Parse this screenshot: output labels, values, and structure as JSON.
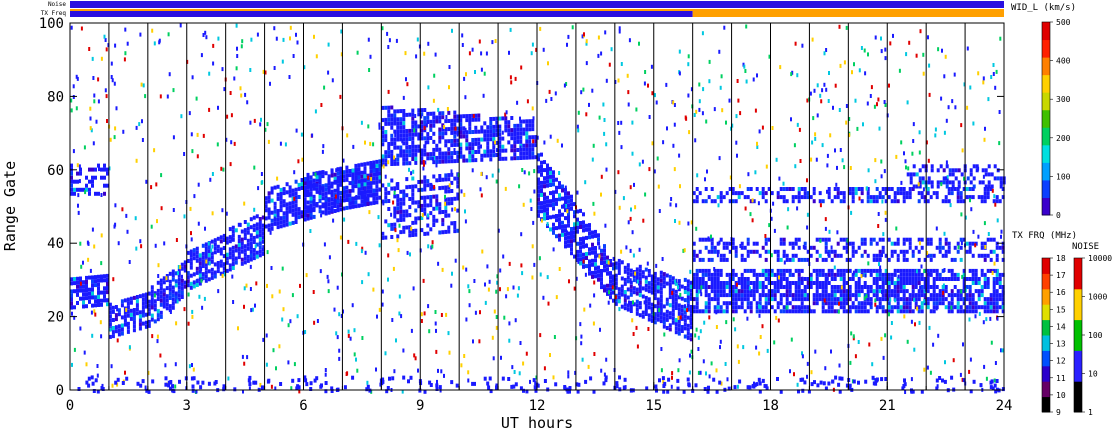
{
  "chart_data": {
    "type": "heatmap",
    "xlabel": "UT hours",
    "ylabel": "Range Gate",
    "xlim": [
      0,
      24
    ],
    "ylim": [
      0,
      100
    ],
    "x_ticks": [
      "0",
      "3",
      "6",
      "9",
      "12",
      "15",
      "18",
      "21",
      "24"
    ],
    "y_ticks": [
      "0",
      "20",
      "40",
      "60",
      "80",
      "100"
    ],
    "hour_lines": [
      1,
      2,
      3,
      4,
      5,
      6,
      7,
      8,
      9,
      10,
      11,
      12,
      13,
      14,
      15,
      16,
      17,
      18,
      19,
      20,
      21,
      22,
      23
    ],
    "noise_bar_label": "Noise",
    "txfreq_bar_label": "TX Freq",
    "background_color": "#ffffff",
    "scatter_color": "#1a1aff",
    "bands": [
      {
        "t0": 0.0,
        "t1": 1.0,
        "lo": [
          23,
          24
        ],
        "hi": [
          31,
          32
        ]
      },
      {
        "t0": 1.0,
        "t1": 2.0,
        "lo": [
          15,
          18
        ],
        "hi": [
          24,
          28
        ]
      },
      {
        "t0": 2.0,
        "t1": 3.0,
        "lo": [
          18,
          26
        ],
        "hi": [
          28,
          36
        ]
      },
      {
        "t0": 3.0,
        "t1": 5.0,
        "lo": [
          28,
          38
        ],
        "hi": [
          38,
          50
        ]
      },
      {
        "t0": 5.0,
        "t1": 7.0,
        "lo": [
          44,
          50
        ],
        "hi": [
          56,
          62
        ]
      },
      {
        "t0": 7.0,
        "t1": 8.0,
        "lo": [
          50,
          52
        ],
        "hi": [
          62,
          64
        ]
      },
      {
        "t0": 8.0,
        "t1": 12.0,
        "lo": [
          62,
          64
        ],
        "hi": [
          78,
          74
        ]
      },
      {
        "t0": 12.0,
        "t1": 14.0,
        "lo": [
          48,
          24
        ],
        "hi": [
          66,
          36
        ]
      },
      {
        "t0": 14.0,
        "t1": 16.0,
        "lo": [
          24,
          14
        ],
        "hi": [
          36,
          30
        ]
      },
      {
        "t0": 16.0,
        "t1": 24.0,
        "lo": [
          22,
          22
        ],
        "hi": [
          34,
          34
        ]
      }
    ],
    "extra_bands": [
      {
        "t0": 0.0,
        "t1": 1.0,
        "lo": [
          54,
          54
        ],
        "hi": [
          62,
          62
        ]
      },
      {
        "t0": 6.0,
        "t1": 8.0,
        "lo": [
          48,
          52
        ],
        "hi": [
          60,
          62
        ]
      },
      {
        "t0": 8.0,
        "t1": 10.0,
        "lo": [
          42,
          44
        ],
        "hi": [
          58,
          60
        ]
      },
      {
        "t0": 16.0,
        "t1": 24.0,
        "lo": [
          36,
          36
        ],
        "hi": [
          42,
          42
        ]
      },
      {
        "t0": 16.0,
        "t1": 24.0,
        "lo": [
          52,
          52
        ],
        "hi": [
          56,
          56
        ]
      },
      {
        "t0": 21.5,
        "t1": 24.0,
        "lo": [
          56,
          56
        ],
        "hi": [
          62,
          62
        ]
      }
    ],
    "top_bar_split_hour": 16.0,
    "colorbars": {
      "width": {
        "title": "WID_L (km/s)",
        "ticks": [
          "0",
          "100",
          "200",
          "300",
          "400",
          "500"
        ],
        "colors": [
          "#3a00cc",
          "#0a40ff",
          "#00a0ff",
          "#00e0e0",
          "#00d060",
          "#40c000",
          "#c8d800",
          "#ffd000",
          "#ff8000",
          "#ff2000",
          "#e00000"
        ]
      },
      "txfreq": {
        "title": "TX FRQ (MHz)",
        "ticks": [
          "9",
          "10",
          "11",
          "12",
          "13",
          "14",
          "15",
          "16",
          "17",
          "18"
        ],
        "colors": [
          "#000000",
          "#660066",
          "#2a00cc",
          "#0050ff",
          "#00c0e0",
          "#00c040",
          "#e0e000",
          "#ffa000",
          "#ff4000",
          "#e00000"
        ]
      },
      "noise": {
        "title": "NOISE",
        "ticks": [
          "1",
          "10",
          "100",
          "1000",
          "10000"
        ],
        "colors": [
          "#000000",
          "#2a20ff",
          "#00c000",
          "#ffd000",
          "#e00000"
        ]
      }
    }
  }
}
